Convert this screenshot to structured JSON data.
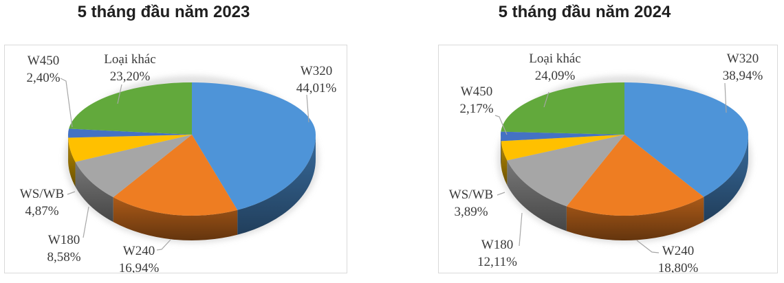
{
  "page": {
    "background_color": "#ffffff",
    "panel_border_color": "#D9D9D9",
    "title_color": "#1f1f1f",
    "label_color": "#3a3a3a",
    "leader_line_color": "#A6A6A6"
  },
  "chart_data": [
    {
      "type": "pie",
      "style": "3d-pie",
      "title": "5 tháng đầu năm 2023",
      "legend": "none",
      "start_angle": 0,
      "direction": "clockwise",
      "label_format": "category + percent (comma decimal), outside with leader lines",
      "categories": [
        "W320",
        "W240",
        "W180",
        "WS/WB",
        "W450",
        "Loại khác"
      ],
      "values": [
        44.01,
        16.94,
        8.58,
        4.87,
        2.4,
        23.2
      ],
      "value_labels": [
        "44,01%",
        "16,94%",
        "8,58%",
        "4,87%",
        "2,40%",
        "23,20%"
      ],
      "colors": [
        "#4E94D8",
        "#EE7D22",
        "#A6A6A6",
        "#FFC000",
        "#4472C4",
        "#62A93C"
      ]
    },
    {
      "type": "pie",
      "style": "3d-pie",
      "title": "5 tháng đầu năm 2024",
      "legend": "none",
      "start_angle": 0,
      "direction": "clockwise",
      "label_format": "category + percent (comma decimal), outside with leader lines",
      "categories": [
        "W320",
        "W240",
        "W180",
        "WS/WB",
        "W450",
        "Loại khác"
      ],
      "values": [
        38.94,
        18.8,
        12.11,
        3.89,
        2.17,
        24.09
      ],
      "value_labels": [
        "38,94%",
        "18,80%",
        "12,11%",
        "3,89%",
        "2,17%",
        "24,09%"
      ],
      "colors": [
        "#4E94D8",
        "#EE7D22",
        "#A6A6A6",
        "#FFC000",
        "#4472C4",
        "#62A93C"
      ]
    }
  ]
}
